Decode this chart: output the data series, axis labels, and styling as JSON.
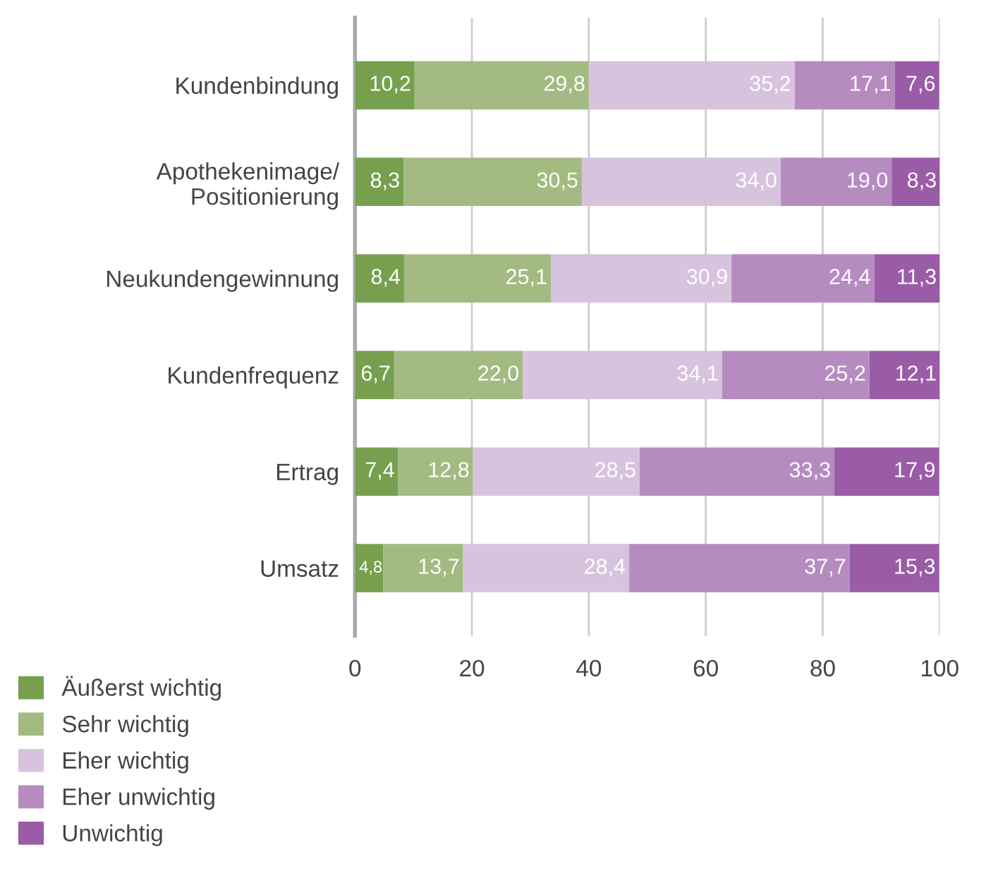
{
  "chart_data": {
    "type": "bar",
    "orientation": "horizontal",
    "stacked": true,
    "categories": [
      "Kundenbindung",
      "Apothekenimage/\nPositionierung",
      "Neukundengewinnung",
      "Kundenfrequenz",
      "Ertrag",
      "Umsatz"
    ],
    "series": [
      {
        "name": "Äußerst wichtig",
        "color": "#76a04e",
        "values": [
          10.2,
          8.3,
          8.4,
          6.7,
          7.4,
          4.8
        ],
        "value_labels": [
          "10,2",
          "8,3",
          "8,4",
          "6,7",
          "7,4",
          "4,8"
        ]
      },
      {
        "name": "Sehr wichtig",
        "color": "#a3bb82",
        "values": [
          29.8,
          30.5,
          25.1,
          22.0,
          12.8,
          13.7
        ],
        "value_labels": [
          "29,8",
          "30,5",
          "25,1",
          "22,0",
          "12,8",
          "13,7"
        ]
      },
      {
        "name": "Eher wichtig",
        "color": "#d8c3de",
        "values": [
          35.2,
          34.0,
          30.9,
          34.1,
          28.5,
          28.4
        ],
        "value_labels": [
          "35,2",
          "34,0",
          "30,9",
          "34,1",
          "28,5",
          "28,4"
        ]
      },
      {
        "name": "Eher unwichtig",
        "color": "#b68cc0",
        "values": [
          17.1,
          19.0,
          24.4,
          25.2,
          33.3,
          37.7
        ],
        "value_labels": [
          "17,1",
          "19,0",
          "24,4",
          "25,2",
          "33,3",
          "37,7"
        ]
      },
      {
        "name": "Unwichtig",
        "color": "#9a5ca7",
        "values": [
          7.6,
          8.3,
          11.3,
          12.1,
          17.9,
          15.3
        ],
        "value_labels": [
          "7,6",
          "8,3",
          "11,3",
          "12,1",
          "17,9",
          "15,3"
        ]
      }
    ],
    "xlim": [
      0,
      100
    ],
    "xticks": [
      0,
      20,
      40,
      60,
      80,
      100
    ],
    "grid": "x",
    "legend": "bottom"
  }
}
